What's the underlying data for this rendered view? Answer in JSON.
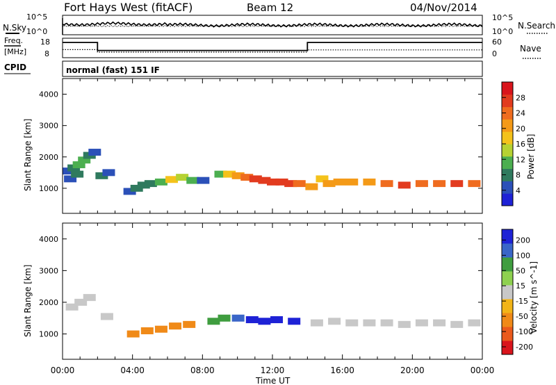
{
  "header": {
    "title": "Fort Hays West (fitACF)",
    "beam": "Beam 12",
    "date": "04/Nov/2014"
  },
  "left_labels": {
    "nsky": "N.Sky",
    "freq_line1": "Freq.",
    "freq_line2": "[MHz]",
    "cpid": "CPID"
  },
  "right_labels": {
    "nsearch": "N.Search",
    "nave": "Nave"
  },
  "cpid_text": "normal (fast) 151 IF",
  "colors": {
    "power_scale": [
      "#1e22d6",
      "#2b50b8",
      "#2f7a5e",
      "#4caf50",
      "#b6d232",
      "#f4c21b",
      "#f49a18",
      "#ef6c1f",
      "#e23b1f",
      "#d9141c"
    ],
    "velocity_scale": [
      "#1e22d6",
      "#3a66c8",
      "#3f9d3f",
      "#8ed14f",
      "#c8c8c8",
      "#f2b418",
      "#f08a18",
      "#ea5a1c",
      "#d9141c"
    ]
  },
  "chart_data": [
    {
      "type": "line",
      "name": "noise-panel",
      "left_axis": {
        "ticks": [
          "10^5",
          "10^0"
        ]
      },
      "right_axis": {
        "ticks": [
          "10^5",
          "10^0"
        ]
      },
      "series": [
        {
          "name": "N.Sky"
        },
        {
          "name": "N.Search"
        }
      ]
    },
    {
      "type": "line",
      "name": "freq-nave-panel",
      "left_axis": {
        "ticks": [
          "18",
          "8"
        ],
        "ylim": [
          8,
          18
        ]
      },
      "right_axis": {
        "ticks": [
          "60",
          "0"
        ],
        "ylim": [
          0,
          60
        ]
      },
      "series": [
        {
          "name": "Freq.",
          "x": [
            0,
            2,
            2,
            14,
            14,
            24
          ],
          "y": [
            16.3,
            16.3,
            11.5,
            11.5,
            16.3,
            16.3
          ]
        },
        {
          "name": "Nave",
          "x": [
            0,
            2,
            2,
            14,
            14,
            24
          ],
          "y": [
            24,
            24,
            15,
            15,
            23,
            23
          ]
        }
      ]
    },
    {
      "type": "heatmap",
      "name": "power-panel",
      "ylabel": "Slant Range [km]",
      "ylim": [
        200,
        4500
      ],
      "xlim": [
        0,
        24
      ],
      "y_ticks": [
        "1000",
        "2000",
        "3000",
        "4000"
      ],
      "colorbar": {
        "label": "Power [dB]",
        "ticks": [
          "4",
          "8",
          "12",
          "16",
          "20",
          "24",
          "28"
        ],
        "range": [
          0,
          32
        ]
      },
      "cells": [
        [
          0.3,
          1550,
          4
        ],
        [
          0.6,
          1650,
          9
        ],
        [
          0.9,
          1750,
          12
        ],
        [
          1.2,
          1900,
          10
        ],
        [
          1.5,
          2050,
          8
        ],
        [
          1.8,
          2150,
          6
        ],
        [
          0.4,
          1300,
          5
        ],
        [
          0.8,
          1450,
          7
        ],
        [
          2.2,
          1400,
          9
        ],
        [
          2.6,
          1500,
          6
        ],
        [
          3.8,
          900,
          5
        ],
        [
          4.2,
          1000,
          8
        ],
        [
          4.6,
          1100,
          9
        ],
        [
          5.0,
          1150,
          7
        ],
        [
          5.6,
          1200,
          12
        ],
        [
          6.2,
          1280,
          16
        ],
        [
          6.8,
          1350,
          14
        ],
        [
          7.4,
          1250,
          10
        ],
        [
          8.0,
          1250,
          6
        ],
        [
          9.0,
          1450,
          12
        ],
        [
          9.5,
          1450,
          18
        ],
        [
          10.0,
          1400,
          22
        ],
        [
          10.5,
          1350,
          25
        ],
        [
          11.0,
          1300,
          26
        ],
        [
          11.5,
          1250,
          27
        ],
        [
          12.0,
          1200,
          28
        ],
        [
          12.5,
          1200,
          26
        ],
        [
          13.0,
          1150,
          28
        ],
        [
          13.5,
          1150,
          24
        ],
        [
          14.2,
          1050,
          22
        ],
        [
          14.8,
          1300,
          18
        ],
        [
          15.2,
          1150,
          20
        ],
        [
          15.8,
          1200,
          22
        ],
        [
          16.5,
          1200,
          20
        ],
        [
          17.5,
          1200,
          22
        ],
        [
          18.5,
          1150,
          24
        ],
        [
          19.5,
          1100,
          26
        ],
        [
          20.5,
          1150,
          25
        ],
        [
          21.5,
          1150,
          24
        ],
        [
          22.5,
          1150,
          26
        ],
        [
          23.5,
          1150,
          25
        ]
      ]
    },
    {
      "type": "heatmap",
      "name": "velocity-panel",
      "xlabel": "Time UT",
      "ylabel": "Slant Range [km]",
      "ylim": [
        200,
        4500
      ],
      "xlim": [
        0,
        24
      ],
      "x_ticks": [
        "00:00",
        "04:00",
        "08:00",
        "12:00",
        "16:00",
        "20:00",
        "00:00"
      ],
      "y_ticks": [
        "1000",
        "2000",
        "3000",
        "4000"
      ],
      "colorbar": {
        "label": "Velocity [m s^-1]",
        "ticks": [
          "200",
          "100",
          "50",
          "15",
          "-15",
          "-50",
          "-100",
          "-200"
        ],
        "range": [
          -250,
          250
        ]
      },
      "cells": [
        [
          0.5,
          1850,
          0
        ],
        [
          1.0,
          2000,
          0
        ],
        [
          1.5,
          2150,
          0
        ],
        [
          2.5,
          1550,
          0
        ],
        [
          4.0,
          1000,
          -70
        ],
        [
          4.8,
          1100,
          -80
        ],
        [
          5.6,
          1150,
          -90
        ],
        [
          6.4,
          1250,
          -80
        ],
        [
          7.2,
          1300,
          -70
        ],
        [
          8.6,
          1400,
          60
        ],
        [
          9.2,
          1500,
          80
        ],
        [
          10.0,
          1500,
          120
        ],
        [
          10.8,
          1450,
          160
        ],
        [
          11.5,
          1400,
          180
        ],
        [
          12.2,
          1450,
          190
        ],
        [
          13.2,
          1400,
          170
        ],
        [
          14.5,
          1350,
          0
        ],
        [
          15.5,
          1400,
          5
        ],
        [
          16.5,
          1350,
          0
        ],
        [
          17.5,
          1350,
          -5
        ],
        [
          18.5,
          1350,
          0
        ],
        [
          19.5,
          1300,
          0
        ],
        [
          20.5,
          1350,
          0
        ],
        [
          21.5,
          1350,
          0
        ],
        [
          22.5,
          1300,
          0
        ],
        [
          23.5,
          1350,
          0
        ]
      ]
    }
  ]
}
